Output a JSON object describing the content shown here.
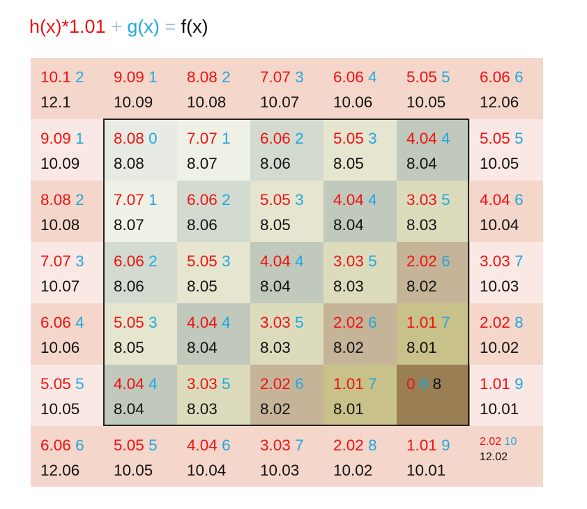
{
  "formula": {
    "h": "h(x)*1.01",
    "plus": " + ",
    "g": "g(x)",
    "eq": " = ",
    "f": "f(x)"
  },
  "colors": {
    "h": "#ee1111",
    "g": "#1fa8e0",
    "f": "#111111",
    "operators": "#9fc3da",
    "outer_dark": "#f5d6cb",
    "outer_light": "#fae8e4",
    "inner_border": "#222222"
  },
  "grid": {
    "rows": [
      [
        {
          "h": "10.1",
          "g": "2",
          "f": "12.1",
          "bg": "#f5d6cb"
        },
        {
          "h": "9.09",
          "g": "1",
          "f": "10.09",
          "bg": "#f5d6cb"
        },
        {
          "h": "8.08",
          "g": "2",
          "f": "10.08",
          "bg": "#f5d6cb"
        },
        {
          "h": "7.07",
          "g": "3",
          "f": "10.07",
          "bg": "#f5d6cb"
        },
        {
          "h": "6.06",
          "g": "4",
          "f": "10.06",
          "bg": "#f5d6cb"
        },
        {
          "h": "5.05",
          "g": "5",
          "f": "10.05",
          "bg": "#f5d6cb"
        },
        {
          "h": "6.06",
          "g": "6",
          "f": "12.06",
          "bg": "#f5d6cb"
        }
      ],
      [
        {
          "h": "9.09",
          "g": "1",
          "f": "10.09",
          "bg": "#fae8e4"
        },
        {
          "h": "8.08",
          "g": "0",
          "f": "8.08",
          "bg": "#e8ebe4"
        },
        {
          "h": "7.07",
          "g": "1",
          "f": "8.07",
          "bg": "#f0f1e6"
        },
        {
          "h": "6.06",
          "g": "2",
          "f": "8.06",
          "bg": "#d3dbd1"
        },
        {
          "h": "5.05",
          "g": "3",
          "f": "8.05",
          "bg": "#e6e5cf"
        },
        {
          "h": "4.04",
          "g": "4",
          "f": "8.04",
          "bg": "#c1c8bc"
        },
        {
          "h": "5.05",
          "g": "5",
          "f": "10.05",
          "bg": "#fae8e4"
        }
      ],
      [
        {
          "h": "8.08",
          "g": "2",
          "f": "10.08",
          "bg": "#f5d6cb"
        },
        {
          "h": "7.07",
          "g": "1",
          "f": "8.07",
          "bg": "#f0f1e6"
        },
        {
          "h": "6.06",
          "g": "2",
          "f": "8.06",
          "bg": "#d3dbd1"
        },
        {
          "h": "5.05",
          "g": "3",
          "f": "8.05",
          "bg": "#e6e5cf"
        },
        {
          "h": "4.04",
          "g": "4",
          "f": "8.04",
          "bg": "#c1c8bc"
        },
        {
          "h": "3.03",
          "g": "5",
          "f": "8.03",
          "bg": "#dcdcbd"
        },
        {
          "h": "4.04",
          "g": "6",
          "f": "10.04",
          "bg": "#f5d6cb"
        }
      ],
      [
        {
          "h": "7.07",
          "g": "3",
          "f": "10.07",
          "bg": "#fae8e4"
        },
        {
          "h": "6.06",
          "g": "2",
          "f": "8.06",
          "bg": "#d3dbd1"
        },
        {
          "h": "5.05",
          "g": "3",
          "f": "8.05",
          "bg": "#e6e5cf"
        },
        {
          "h": "4.04",
          "g": "4",
          "f": "8.04",
          "bg": "#c1c8bc"
        },
        {
          "h": "3.03",
          "g": "5",
          "f": "8.03",
          "bg": "#dcdcbd"
        },
        {
          "h": "2.02",
          "g": "6",
          "f": "8.02",
          "bg": "#c6b499"
        },
        {
          "h": "3.03",
          "g": "7",
          "f": "10.03",
          "bg": "#fae8e4"
        }
      ],
      [
        {
          "h": "6.06",
          "g": "4",
          "f": "10.06",
          "bg": "#f5d6cb"
        },
        {
          "h": "5.05",
          "g": "3",
          "f": "8.05",
          "bg": "#e6e5cf"
        },
        {
          "h": "4.04",
          "g": "4",
          "f": "8.04",
          "bg": "#c1c8bc"
        },
        {
          "h": "3.03",
          "g": "5",
          "f": "8.03",
          "bg": "#dcdcbd"
        },
        {
          "h": "2.02",
          "g": "6",
          "f": "8.02",
          "bg": "#c6b499"
        },
        {
          "h": "1.01",
          "g": "7",
          "f": "8.01",
          "bg": "#c8c189"
        },
        {
          "h": "2.02",
          "g": "8",
          "f": "10.02",
          "bg": "#f5d6cb"
        }
      ],
      [
        {
          "h": "5.05",
          "g": "5",
          "f": "10.05",
          "bg": "#fae8e4"
        },
        {
          "h": "4.04",
          "g": "4",
          "f": "8.04",
          "bg": "#c1c8bc"
        },
        {
          "h": "3.03",
          "g": "5",
          "f": "8.03",
          "bg": "#dcdcbd"
        },
        {
          "h": "2.02",
          "g": "6",
          "f": "8.02",
          "bg": "#c6b499"
        },
        {
          "h": "1.01",
          "g": "7",
          "f": "8.01",
          "bg": "#c8c189"
        },
        {
          "h": "0",
          "g": "8",
          "f": "8",
          "bg": "#9a7f55",
          "f_inline": true
        },
        {
          "h": "1.01",
          "g": "9",
          "f": "10.01",
          "bg": "#fae8e4"
        }
      ],
      [
        {
          "h": "6.06",
          "g": "6",
          "f": "12.06",
          "bg": "#f5d6cb"
        },
        {
          "h": "5.05",
          "g": "5",
          "f": "10.05",
          "bg": "#f5d6cb"
        },
        {
          "h": "4.04",
          "g": "6",
          "f": "10.04",
          "bg": "#f5d6cb"
        },
        {
          "h": "3.03",
          "g": "7",
          "f": "10.03",
          "bg": "#f5d6cb"
        },
        {
          "h": "2.02",
          "g": "8",
          "f": "10.02",
          "bg": "#f5d6cb"
        },
        {
          "h": "1.01",
          "g": "9",
          "f": "10.01",
          "bg": "#f5d6cb"
        },
        {
          "h": "2.02",
          "g": "10",
          "f": "12.02",
          "bg": "#f5d6cb",
          "small": true
        }
      ]
    ]
  }
}
